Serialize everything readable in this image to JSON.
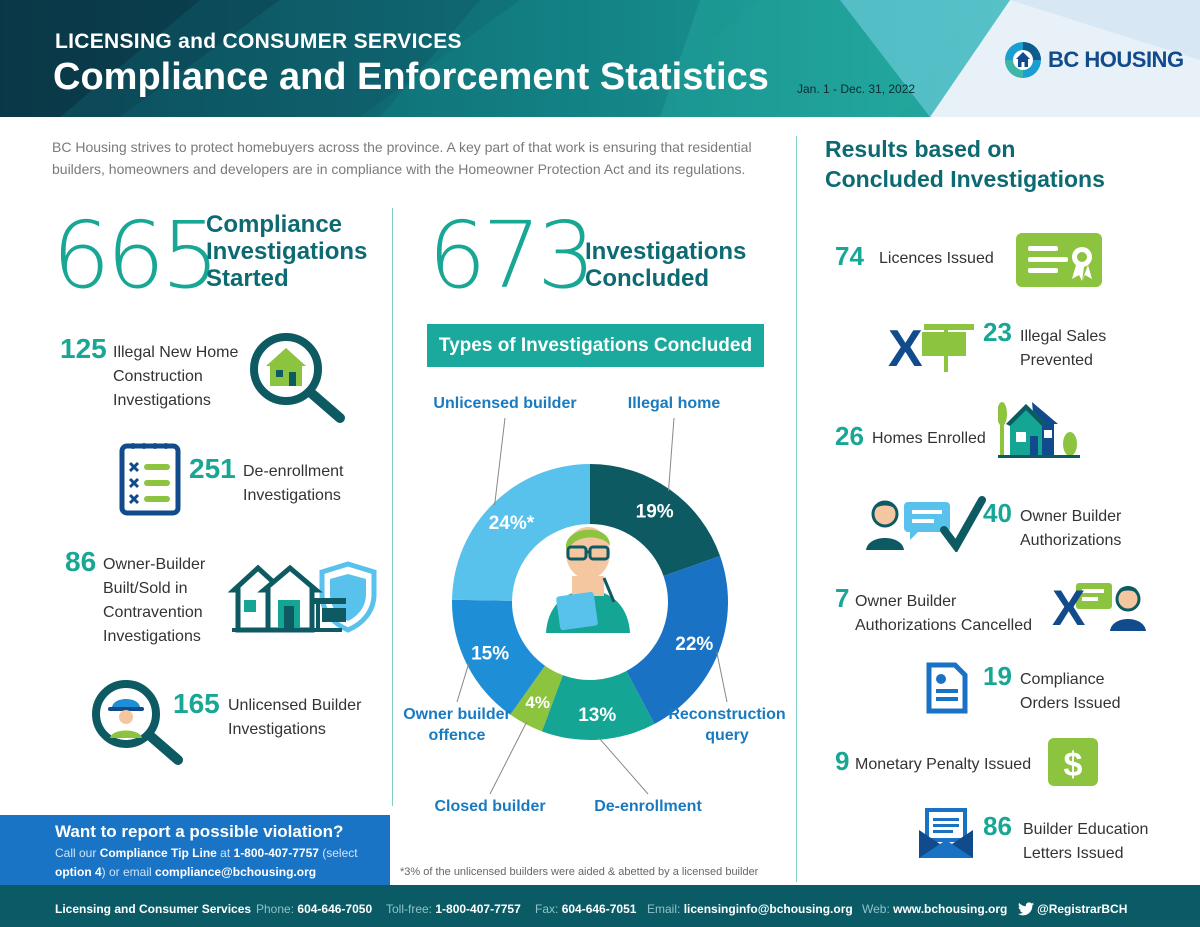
{
  "header": {
    "subtitle": "LICENSING and CONSUMER SERVICES",
    "title": "Compliance and Enforcement Statistics",
    "date_range": "Jan. 1 - Dec. 31, 2022",
    "logo_text": "BC HOUSING"
  },
  "intro": "BC Housing strives to protect homebuyers across the province. A key part of that work is ensuring that residential builders, homeowners and developers are in compliance with the Homeowner Protection Act and its regulations.",
  "started": {
    "number": "665",
    "label_lines": [
      "Compliance",
      "Investigations",
      "Started"
    ],
    "items": [
      {
        "number": "125",
        "lines": [
          "Illegal New Home",
          "Construction",
          "Investigations"
        ],
        "icon": "magnifier-house-icon"
      },
      {
        "number": "251",
        "lines": [
          "De-enrollment",
          "Investigations"
        ],
        "icon": "checklist-icon"
      },
      {
        "number": "86",
        "lines": [
          "Owner-Builder",
          "Built/Sold in",
          "Contravention",
          "Investigations"
        ],
        "icon": "houses-shield-icon"
      },
      {
        "number": "165",
        "lines": [
          "Unlicensed Builder",
          "Investigations"
        ],
        "icon": "magnifier-worker-icon"
      }
    ]
  },
  "concluded": {
    "number": "673",
    "label_lines": [
      "Investigations",
      "Concluded"
    ],
    "chart_title": "Types of Investigations Concluded",
    "footnote": "*3% of the unlicensed builders were aided & abetted by a licensed builder"
  },
  "chart_data": {
    "type": "pie",
    "title": "Types of Investigations Concluded",
    "categories": [
      "Illegal home",
      "Reconstruction query",
      "De-enrollment",
      "Closed builder",
      "Owner builder offence",
      "Unlicensed builder"
    ],
    "values": [
      19,
      22,
      13,
      4,
      15,
      24
    ],
    "value_labels": [
      "19%",
      "22%",
      "13%",
      "4%",
      "15%",
      "24%*"
    ],
    "annotation_lines": [
      [
        "Illegal home"
      ],
      [
        "Reconstruction",
        "query"
      ],
      [
        "De-enrollment"
      ],
      [
        "Closed builder"
      ],
      [
        "Owner builder",
        "offence"
      ],
      [
        "Unlicensed builder"
      ]
    ],
    "colors": [
      "#0d5a63",
      "#1a72c4",
      "#14a594",
      "#8cc43f",
      "#1e8ed6",
      "#58c2ec"
    ]
  },
  "report": {
    "title": "Want to report a possible violation?",
    "t1": "Call our ",
    "t2": "Compliance Tip Line",
    "t3": " at ",
    "t4": "1-800-407-7757",
    "t5": " (select ",
    "t6": "option 4",
    "t7": ") or email ",
    "t8": "compliance@bchousing.org"
  },
  "results": {
    "title_lines": [
      "Results based on",
      "Concluded Investigations"
    ],
    "items": [
      {
        "number": "74",
        "lines": [
          "Licences Issued"
        ],
        "icon": "certificate-icon"
      },
      {
        "number": "23",
        "lines": [
          "Illegal Sales",
          "Prevented"
        ],
        "icon": "sign-x-icon"
      },
      {
        "number": "26",
        "lines": [
          "Homes Enrolled"
        ],
        "icon": "homes-icon"
      },
      {
        "number": "40",
        "lines": [
          "Owner Builder",
          "Authorizations"
        ],
        "icon": "person-check-icon"
      },
      {
        "number": "7",
        "lines": [
          "Owner Builder",
          "Authorizations Cancelled"
        ],
        "icon": "person-x-icon"
      },
      {
        "number": "19",
        "lines": [
          "Compliance",
          "Orders Issued"
        ],
        "icon": "document-icon"
      },
      {
        "number": "9",
        "lines": [
          "Monetary Penalty Issued"
        ],
        "icon": "dollar-icon"
      },
      {
        "number": "86",
        "lines": [
          "Builder Education",
          "Letters Issued"
        ],
        "icon": "envelope-icon"
      }
    ]
  },
  "footer": {
    "org": "Licensing and Consumer Services",
    "phone_label": "Phone:",
    "phone": "604-646-7050",
    "tollfree_label": "Toll-free:",
    "tollfree": "1-800-407-7757",
    "fax_label": "Fax:",
    "fax": "604-646-7051",
    "email_label": "Email:",
    "email": "licensinginfo@bchousing.org",
    "web_label": "Web:",
    "web": "www.bchousing.org",
    "twitter": "@RegistrarBCH"
  },
  "colors": {
    "teal": "#18a695",
    "dark_teal": "#0d6a73",
    "blue": "#1a74c6",
    "green": "#8cc43f",
    "navy": "#124b8c"
  }
}
